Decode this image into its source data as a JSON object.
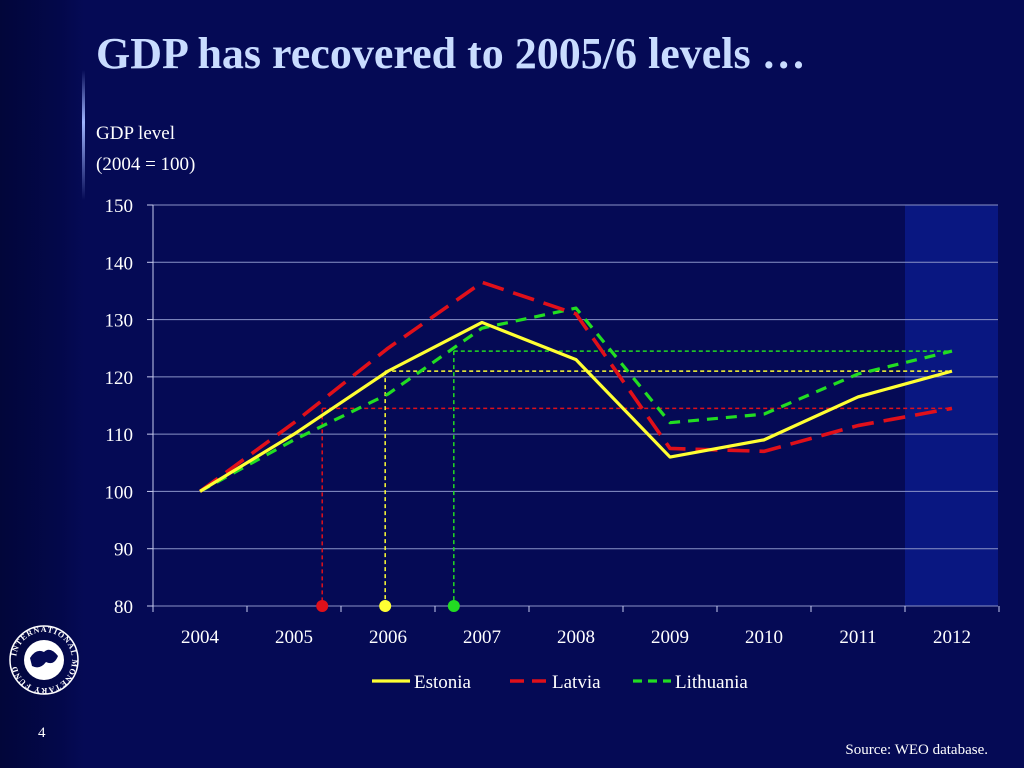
{
  "slide": {
    "title": "GDP has recovered to 2005/6 levels …",
    "page_number": "4",
    "source": "Source: WEO database.",
    "logo_text": "INTERNATIONAL MONETARY FUND"
  },
  "colors": {
    "background": "#050a55",
    "plot_highlight": "#0a1a8c",
    "estonia": "#ffff33",
    "latvia": "#e0101a",
    "lithuania": "#22dd22",
    "title": "#c9dcff"
  },
  "chart_data": {
    "type": "line",
    "ylabel_lines": [
      "GDP level",
      "(2004 = 100)"
    ],
    "ylim": [
      80,
      150
    ],
    "yticks": [
      80,
      90,
      100,
      110,
      120,
      130,
      140,
      150
    ],
    "x": [
      2004,
      2005,
      2006,
      2007,
      2008,
      2009,
      2010,
      2011,
      2012
    ],
    "categories": [
      "2004",
      "2005",
      "2006",
      "2007",
      "2008",
      "2009",
      "2010",
      "2011",
      "2012"
    ],
    "grid": true,
    "legend_position": "bottom",
    "series": [
      {
        "name": "Estonia",
        "key": "estonia",
        "style": "solid",
        "values": [
          100,
          110,
          121,
          129.5,
          123,
          106,
          109,
          116.5,
          121
        ]
      },
      {
        "name": "Latvia",
        "key": "latvia",
        "style": "long-dash",
        "values": [
          100,
          112,
          125,
          136.5,
          131,
          107.5,
          107,
          111.5,
          114.5
        ]
      },
      {
        "name": "Lithuania",
        "key": "lithuania",
        "style": "short-dash",
        "values": [
          100,
          109,
          117,
          128.5,
          132,
          112,
          113.5,
          120.5,
          124.5
        ]
      }
    ],
    "annotations": [
      {
        "series": "latvia",
        "level": 114.5,
        "year_reached": 2005.3
      },
      {
        "series": "estonia",
        "level": 121,
        "year_reached": 2005.97
      },
      {
        "series": "lithuania",
        "level": 124.5,
        "year_reached": 2006.7
      }
    ]
  }
}
